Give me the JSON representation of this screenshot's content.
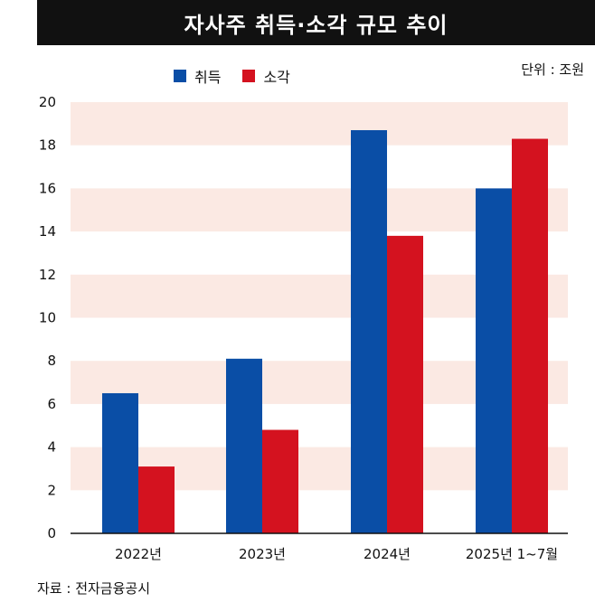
{
  "title": "자사주 취득·소각 규모 추이",
  "unit_label": "단위 : 조원",
  "source_label": "자료 : 전자금융공시",
  "colors": {
    "acquisition": "#0a4ea6",
    "cancellation": "#d4121f",
    "band": "#fbe9e3",
    "title_bg": "#111111"
  },
  "chart_data": {
    "type": "bar",
    "title": "자사주 취득·소각 규모 추이",
    "categories": [
      "2022년",
      "2023년",
      "2024년",
      "2025년 1~7월"
    ],
    "series": [
      {
        "name": "취득",
        "values": [
          6.5,
          8.1,
          18.7,
          16.0
        ]
      },
      {
        "name": "소각",
        "values": [
          3.1,
          4.8,
          13.8,
          18.3
        ]
      }
    ],
    "ylim": [
      0,
      20
    ],
    "yticks": [
      0,
      2,
      4,
      6,
      8,
      10,
      12,
      14,
      16,
      18,
      20
    ],
    "grid": "alternating horizontal bands",
    "legend_position": "top-left"
  }
}
